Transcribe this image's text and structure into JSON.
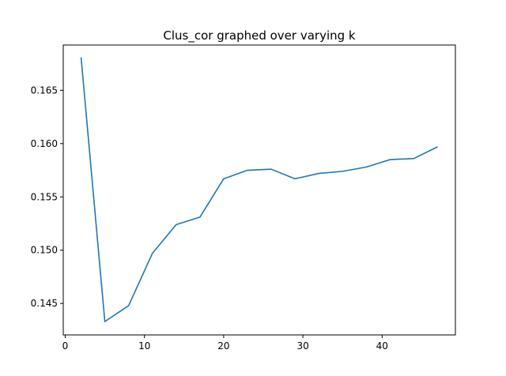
{
  "chart_data": {
    "type": "line",
    "title": "Clus_cor graphed over varying k",
    "xlabel": "",
    "ylabel": "",
    "xlim": [
      -0.25,
      49.25
    ],
    "ylim": [
      0.14205,
      0.16925
    ],
    "xticks": [
      0,
      10,
      20,
      30,
      40
    ],
    "yticks": [
      0.145,
      0.15,
      0.155,
      0.16,
      0.165
    ],
    "xtick_labels": [
      "0",
      "10",
      "20",
      "30",
      "40"
    ],
    "ytick_labels": [
      "0.145",
      "0.150",
      "0.155",
      "0.160",
      "0.165"
    ],
    "grid": false,
    "legend": false,
    "series": [
      {
        "color": "#1f77b4",
        "x": [
          2,
          5,
          8,
          11,
          14,
          17,
          20,
          23,
          26,
          29,
          32,
          35,
          38,
          41,
          44,
          47
        ],
        "y": [
          0.1681,
          0.1433,
          0.1448,
          0.1497,
          0.1524,
          0.1531,
          0.1567,
          0.1575,
          0.1576,
          0.1567,
          0.1572,
          0.1574,
          0.1578,
          0.1585,
          0.1586,
          0.1597
        ]
      }
    ]
  }
}
